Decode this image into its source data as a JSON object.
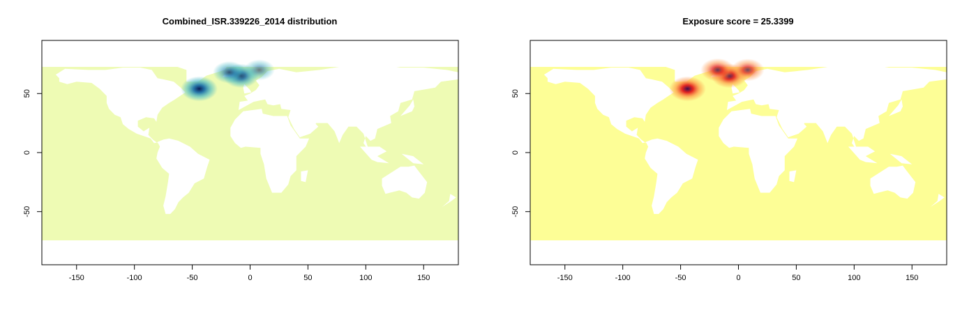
{
  "chart_data": [
    {
      "type": "heatmap",
      "title": "Combined_ISR.339226_2014 distribution",
      "xlabel": "",
      "ylabel": "",
      "xlim": [
        -180,
        180
      ],
      "ylim": [
        -95,
        95
      ],
      "x_ticks": [
        -150,
        -100,
        -50,
        0,
        50,
        100,
        150
      ],
      "y_ticks": [
        -50,
        0,
        50
      ],
      "grid": false,
      "palette": "YlGnBu",
      "colors": {
        "ocean": "#eefbb4",
        "land": "#ffffff",
        "low": "#41b6c4",
        "mid": "#1d6fa8",
        "high": "#081d58"
      },
      "hotspots": [
        {
          "lon": -44,
          "lat": 54,
          "intensity": 1.0
        },
        {
          "lon": -8,
          "lat": 65,
          "intensity": 0.85
        },
        {
          "lon": -18,
          "lat": 68,
          "intensity": 0.55
        },
        {
          "lon": 8,
          "lat": 70,
          "intensity": 0.35
        }
      ]
    },
    {
      "type": "heatmap",
      "title": "Exposure score = 25.3399",
      "xlabel": "",
      "ylabel": "",
      "xlim": [
        -180,
        180
      ],
      "ylim": [
        -95,
        95
      ],
      "x_ticks": [
        -150,
        -100,
        -50,
        0,
        50,
        100,
        150
      ],
      "y_ticks": [
        -50,
        0,
        50
      ],
      "grid": false,
      "palette": "YlOrRd",
      "colors": {
        "ocean": "#fdfe96",
        "land": "#ffffff",
        "low": "#fd8d3c",
        "mid": "#e31a1c",
        "high": "#3b0f4f"
      },
      "hotspots": [
        {
          "lon": -44,
          "lat": 54,
          "intensity": 1.0
        },
        {
          "lon": -8,
          "lat": 65,
          "intensity": 0.9
        },
        {
          "lon": -18,
          "lat": 70,
          "intensity": 0.7
        },
        {
          "lon": 8,
          "lat": 70,
          "intensity": 0.6
        }
      ]
    }
  ]
}
